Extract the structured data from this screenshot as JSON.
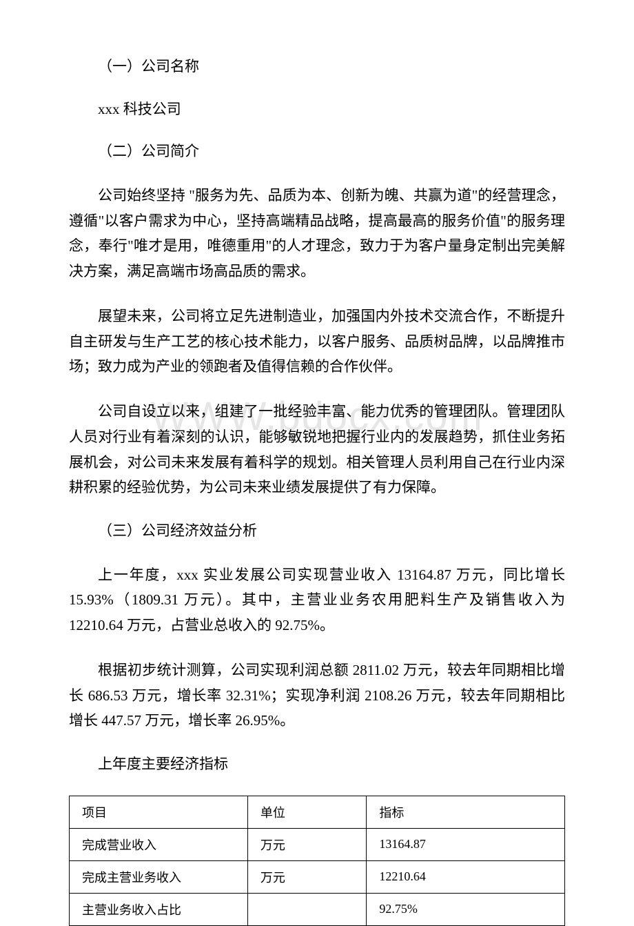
{
  "watermark": "WWW.bdocx.com",
  "sections": {
    "h1": "（一）公司名称",
    "company_name": "xxx 科技公司",
    "h2": "（二）公司简介",
    "p1": "公司始终坚持 \"服务为先、品质为本、创新为魄、共赢为道\"的经营理念，遵循\"以客户需求为中心，坚持高端精品战略，提高最高的服务价值\"的服务理念，奉行\"唯才是用，唯德重用\"的人才理念，致力于为客户量身定制出完美解决方案，满足高端市场高品质的需求。",
    "p2": "展望未来，公司将立足先进制造业，加强国内外技术交流合作，不断提升自主研发与生产工艺的核心技术能力，以客户服务、品质树品牌，以品牌推市场；致力成为产业的领跑者及值得信赖的合作伙伴。",
    "p3": "公司自设立以来，组建了一批经验丰富、能力优秀的管理团队。管理团队人员对行业有着深刻的认识，能够敏锐地把握行业内的发展趋势，抓住业务拓展机会，对公司未来发展有着科学的规划。相关管理人员利用自己在行业内深耕积累的经验优势，为公司未来业绩发展提供了有力保障。",
    "h3": "（三）公司经济效益分析",
    "p4": "上一年度，xxx 实业发展公司实现营业收入 13164.87 万元，同比增长 15.93%（1809.31 万元）。其中，主营业业务农用肥料生产及销售收入为 12210.64 万元，占营业总收入的 92.75%。",
    "p5": "根据初步统计测算，公司实现利润总额 2811.02 万元，较去年同期相比增长 686.53 万元，增长率 32.31%；实现净利润 2108.26 万元，较去年同期相比增长 447.57 万元，增长率 26.95%。",
    "table_title": "上年度主要经济指标"
  },
  "table": {
    "headers": [
      "项目",
      "单位",
      "指标"
    ],
    "rows": [
      [
        "完成营业收入",
        "万元",
        "13164.87"
      ],
      [
        "完成主营业务收入",
        "万元",
        "12210.64"
      ],
      [
        "主营业务收入占比",
        "",
        "92.75%"
      ]
    ]
  }
}
